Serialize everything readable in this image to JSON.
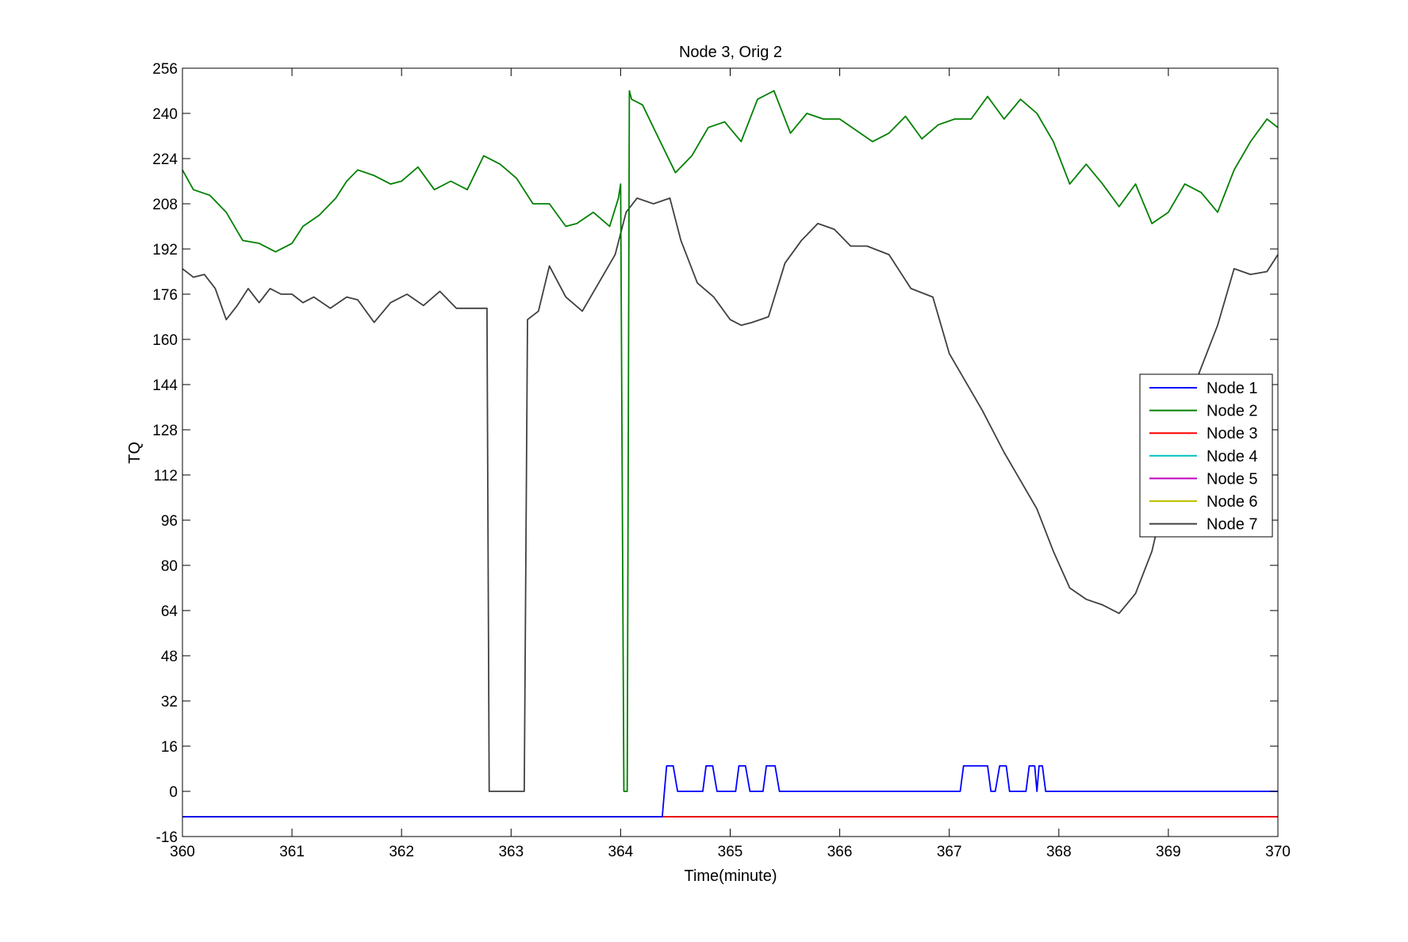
{
  "chart_data": {
    "type": "line",
    "title": "Node 3, Orig 2",
    "xlabel": "Time(minute)",
    "ylabel": "TQ",
    "xlim": [
      360,
      370
    ],
    "ylim": [
      -16,
      256
    ],
    "xticks": [
      360,
      361,
      362,
      363,
      364,
      365,
      366,
      367,
      368,
      369,
      370
    ],
    "yticks": [
      -16,
      0,
      16,
      32,
      48,
      64,
      80,
      96,
      112,
      128,
      144,
      160,
      176,
      192,
      208,
      224,
      240,
      256
    ],
    "grid": false,
    "legend_position": "right",
    "colors": {
      "Node  1": "#0000ff",
      "Node  2": "#008000",
      "Node  3": "#ff0000",
      "Node  4": "#00bfbf",
      "Node  5": "#bf00bf",
      "Node  6": "#bfbf00",
      "Node  7": "#404040"
    },
    "series": [
      {
        "name": "Node  1",
        "x": [
          360,
          364.38,
          364.4,
          364.42,
          364.48,
          364.52,
          364.75,
          364.78,
          364.84,
          364.88,
          365.05,
          365.08,
          365.14,
          365.18,
          365.3,
          365.33,
          365.41,
          365.45,
          367.1,
          367.13,
          367.35,
          367.38,
          367.42,
          367.46,
          367.52,
          367.55,
          367.7,
          367.73,
          367.78,
          367.8,
          367.82,
          367.85,
          367.88,
          367.91,
          370
        ],
        "values": [
          -9,
          -9,
          0,
          9,
          9,
          0,
          0,
          9,
          9,
          0,
          0,
          9,
          9,
          0,
          0,
          9,
          9,
          0,
          0,
          9,
          9,
          0,
          0,
          9,
          9,
          0,
          0,
          9,
          9,
          0,
          9,
          9,
          0,
          0,
          0
        ]
      },
      {
        "name": "Node  2",
        "x": [
          360,
          360.1,
          360.25,
          360.4,
          360.55,
          360.7,
          360.85,
          361.0,
          361.1,
          361.25,
          361.4,
          361.5,
          361.6,
          361.75,
          361.9,
          362.0,
          362.15,
          362.3,
          362.45,
          362.6,
          362.75,
          362.9,
          363.05,
          363.2,
          363.35,
          363.5,
          363.6,
          363.75,
          363.9,
          363.98,
          364.0,
          364.03,
          364.06,
          364.08,
          364.1,
          364.2,
          364.35,
          364.5,
          364.65,
          364.8,
          364.95,
          365.1,
          365.25,
          365.4,
          365.55,
          365.7,
          365.85,
          366.0,
          366.15,
          366.3,
          366.45,
          366.6,
          366.75,
          366.9,
          367.05,
          367.2,
          367.35,
          367.5,
          367.65,
          367.8,
          367.95,
          368.1,
          368.25,
          368.4,
          368.55,
          368.7,
          368.85,
          369.0,
          369.15,
          369.3,
          369.45,
          369.6,
          369.75,
          369.9,
          370
        ],
        "values": [
          220,
          213,
          211,
          205,
          195,
          194,
          191,
          194,
          200,
          204,
          210,
          216,
          220,
          218,
          215,
          216,
          221,
          213,
          216,
          213,
          225,
          222,
          217,
          208,
          208,
          200,
          201,
          205,
          200,
          210,
          215,
          0,
          0,
          248,
          245,
          243,
          231,
          219,
          225,
          235,
          237,
          230,
          245,
          248,
          233,
          240,
          238,
          238,
          234,
          230,
          233,
          239,
          231,
          236,
          238,
          238,
          246,
          238,
          245,
          240,
          230,
          215,
          222,
          215,
          207,
          215,
          201,
          205,
          215,
          212,
          205,
          220,
          230,
          238,
          235
        ]
      },
      {
        "name": "Node  3",
        "x": [
          360,
          370
        ],
        "values": [
          -9,
          -9
        ]
      },
      {
        "name": "Node  4",
        "x": [
          360,
          370
        ],
        "values": [
          -9,
          -9
        ]
      },
      {
        "name": "Node  5",
        "x": [
          360,
          370
        ],
        "values": [
          -9,
          -9
        ]
      },
      {
        "name": "Node  6",
        "x": [
          360,
          370
        ],
        "values": [
          -9,
          -9
        ]
      },
      {
        "name": "Node  7",
        "x": [
          360,
          360.1,
          360.2,
          360.3,
          360.4,
          360.5,
          360.6,
          360.7,
          360.8,
          360.9,
          361.0,
          361.1,
          361.2,
          361.35,
          361.5,
          361.6,
          361.75,
          361.9,
          362.05,
          362.2,
          362.35,
          362.5,
          362.65,
          362.78,
          362.8,
          363.12,
          363.15,
          363.25,
          363.35,
          363.5,
          363.65,
          363.8,
          363.95,
          364.05,
          364.15,
          364.3,
          364.45,
          364.55,
          364.7,
          364.85,
          365.0,
          365.1,
          365.2,
          365.35,
          365.5,
          365.65,
          365.8,
          365.95,
          366.1,
          366.25,
          366.45,
          366.65,
          366.85,
          367.0,
          367.15,
          367.3,
          367.5,
          367.65,
          367.8,
          367.95,
          368.1,
          368.25,
          368.4,
          368.55,
          368.7,
          368.85,
          369.0,
          369.15,
          369.3,
          369.45,
          369.6,
          369.75,
          369.9,
          370
        ],
        "values": [
          185,
          182,
          183,
          178,
          167,
          172,
          178,
          173,
          178,
          176,
          176,
          173,
          175,
          171,
          175,
          174,
          166,
          173,
          176,
          172,
          177,
          171,
          171,
          171,
          0,
          0,
          167,
          170,
          186,
          175,
          170,
          180,
          190,
          205,
          210,
          208,
          210,
          195,
          180,
          175,
          167,
          165,
          166,
          168,
          187,
          195,
          201,
          199,
          193,
          193,
          190,
          178,
          175,
          155,
          145,
          135,
          120,
          110,
          100,
          85,
          72,
          68,
          66,
          63,
          70,
          85,
          110,
          135,
          150,
          165,
          185,
          183,
          184,
          190
        ]
      }
    ]
  }
}
